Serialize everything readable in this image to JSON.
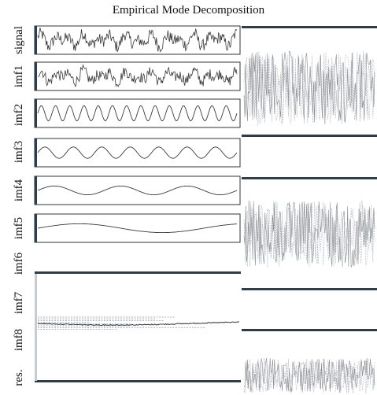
{
  "chart_data": {
    "type": "line",
    "title": "Empirical Mode Decomposition",
    "panel_labels": [
      "signal",
      "imf1",
      "imf2",
      "imf3",
      "imf4",
      "imf5",
      "imf6",
      "imf7",
      "imf8",
      "res."
    ],
    "series": [
      {
        "name": "signal",
        "kind": "noise",
        "amplitude": 0.9
      },
      {
        "name": "imf1",
        "kind": "noise",
        "amplitude": 0.8
      },
      {
        "name": "imf2",
        "kind": "wave",
        "cycles": 14,
        "amplitude": 0.6
      },
      {
        "name": "imf3",
        "kind": "wave",
        "cycles": 7,
        "amplitude": 0.45
      },
      {
        "name": "imf4",
        "kind": "wave",
        "cycles": 3,
        "amplitude": 0.35
      },
      {
        "name": "imf5",
        "kind": "wave",
        "cycles": 1.2,
        "amplitude": 0.35
      }
    ],
    "x_range": [
      0,
      1000
    ],
    "grid": false,
    "legend": "none",
    "colors": {
      "line": "#3a3a3a",
      "frame": "#333333",
      "thick_frame": "#2e3d4a",
      "ghost": "#9aa0a6"
    }
  }
}
